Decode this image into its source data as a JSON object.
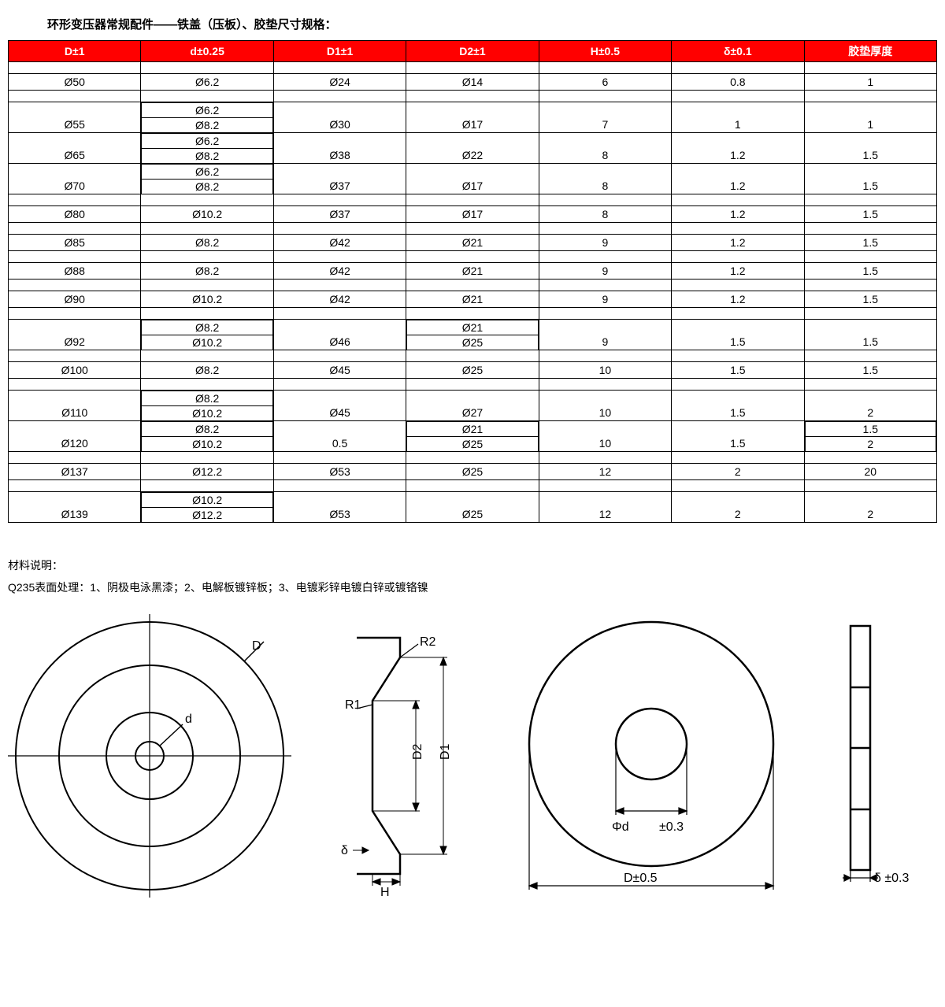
{
  "title": "环形变压器常规配件——铁盖（压板）、胶垫尺寸规格：",
  "columns": [
    "D±1",
    "d±0.25",
    "D1±1",
    "D2±1",
    "H±0.5",
    "δ±0.1",
    "胶垫厚度"
  ],
  "header_bg": "#ff0000",
  "header_fg": "#ffffff",
  "rows": [
    {
      "D": "Ø50",
      "d": [
        "Ø6.2"
      ],
      "D1": "Ø24",
      "D2": [
        "Ø14"
      ],
      "H": "6",
      "delta": "0.8",
      "pad": [
        "1"
      ]
    },
    {
      "D": "Ø55",
      "d": [
        "Ø6.2",
        "Ø8.2"
      ],
      "D1": "Ø30",
      "D2": [
        "Ø17"
      ],
      "H": "7",
      "delta": "1",
      "pad": [
        "1"
      ]
    },
    {
      "D": "Ø65",
      "d": [
        "Ø6.2",
        "Ø8.2"
      ],
      "D1": "Ø38",
      "D2": [
        "Ø22"
      ],
      "H": "8",
      "delta": "1.2",
      "pad": [
        "1.5"
      ]
    },
    {
      "D": "Ø70",
      "d": [
        "Ø6.2",
        "Ø8.2"
      ],
      "D1": "Ø37",
      "D2": [
        "Ø17"
      ],
      "H": "8",
      "delta": "1.2",
      "pad": [
        "1.5"
      ]
    },
    {
      "D": "Ø80",
      "d": [
        "Ø10.2"
      ],
      "D1": "Ø37",
      "D2": [
        "Ø17"
      ],
      "H": "8",
      "delta": "1.2",
      "pad": [
        "1.5"
      ]
    },
    {
      "D": "Ø85",
      "d": [
        "Ø8.2"
      ],
      "D1": "Ø42",
      "D2": [
        "Ø21"
      ],
      "H": "9",
      "delta": "1.2",
      "pad": [
        "1.5"
      ]
    },
    {
      "D": "Ø88",
      "d": [
        "Ø8.2"
      ],
      "D1": "Ø42",
      "D2": [
        "Ø21"
      ],
      "H": "9",
      "delta": "1.2",
      "pad": [
        "1.5"
      ]
    },
    {
      "D": "Ø90",
      "d": [
        "Ø10.2"
      ],
      "D1": "Ø42",
      "D2": [
        "Ø21"
      ],
      "H": "9",
      "delta": "1.2",
      "pad": [
        "1.5"
      ]
    },
    {
      "D": "Ø92",
      "d": [
        "Ø8.2",
        "Ø10.2"
      ],
      "D1": "Ø46",
      "D2": [
        "Ø21",
        "Ø25"
      ],
      "H": "9",
      "delta": "1.5",
      "pad": [
        "1.5"
      ]
    },
    {
      "D": "Ø100",
      "d": [
        "Ø8.2"
      ],
      "D1": "Ø45",
      "D2": [
        "Ø25"
      ],
      "H": "10",
      "delta": "1.5",
      "pad": [
        "1.5"
      ]
    },
    {
      "D": "Ø110",
      "d": [
        "Ø8.2",
        "Ø10.2"
      ],
      "D1": "Ø45",
      "D2": [
        "Ø27"
      ],
      "H": "10",
      "delta": "1.5",
      "pad": [
        "2"
      ]
    },
    {
      "D": "Ø120",
      "d": [
        "Ø8.2",
        "Ø10.2"
      ],
      "D1": "0.5",
      "D2": [
        "Ø21",
        "Ø25"
      ],
      "H": "10",
      "delta": "1.5",
      "pad": [
        "1.5",
        "2"
      ]
    },
    {
      "D": "Ø137",
      "d": [
        "Ø12.2"
      ],
      "D1": "Ø53",
      "D2": [
        "Ø25"
      ],
      "H": "12",
      "delta": "2",
      "pad": [
        "20"
      ]
    },
    {
      "D": "Ø139",
      "d": [
        "Ø10.2",
        "Ø12.2"
      ],
      "D1": "Ø53",
      "D2": [
        "Ø25"
      ],
      "H": "12",
      "delta": "2",
      "pad": [
        "2"
      ]
    }
  ],
  "notes_title": "材料说明：",
  "notes_body": "Q235表面处理：1、阴极电泳黑漆；2、电解板镀锌板；3、电镀彩锌电镀白锌或镀铬镍",
  "labels": {
    "D": "D",
    "d": "d",
    "R1": "R1",
    "R2": "R2",
    "D1": "D1",
    "D2": "D2",
    "delta": "δ",
    "H": "H",
    "phi_d": "Φd",
    "tol03": "±0.3",
    "Dtol": "D±0.5",
    "dtol": "δ ±0.3"
  }
}
